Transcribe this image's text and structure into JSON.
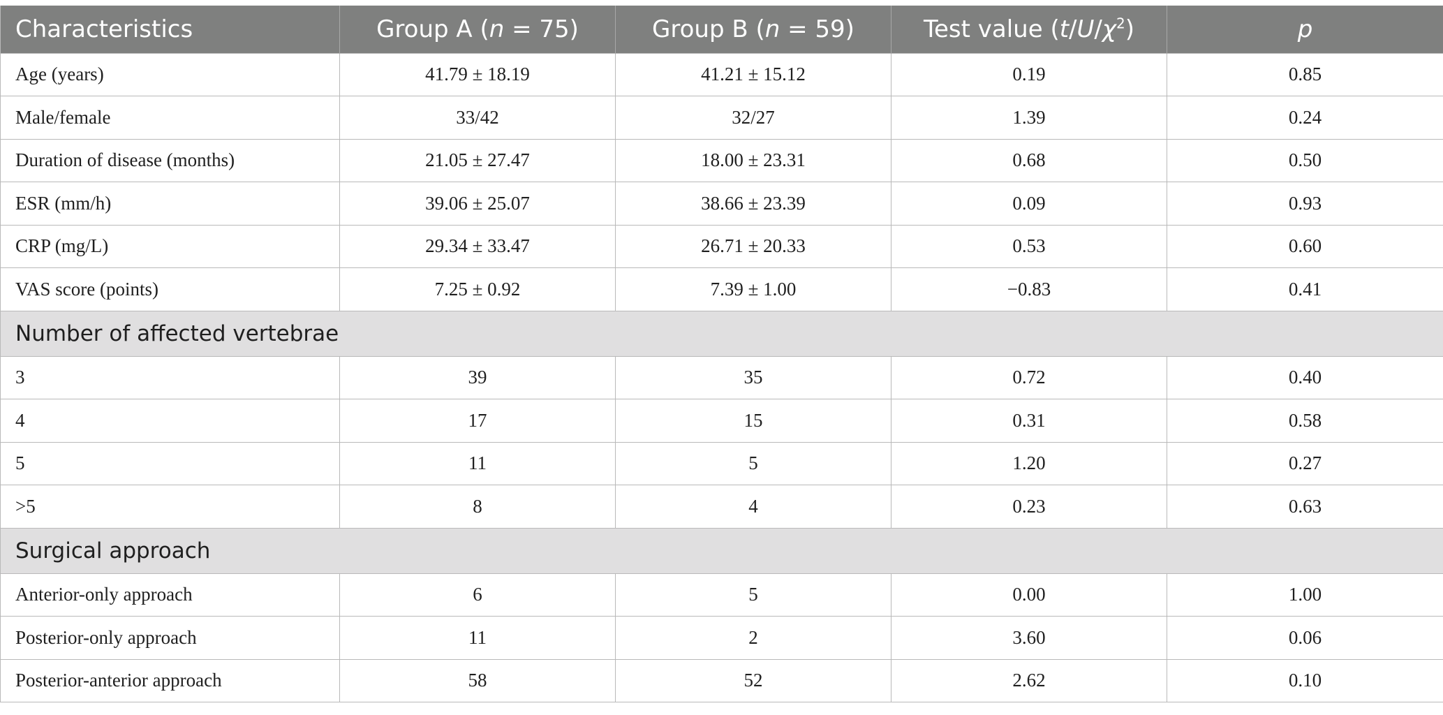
{
  "table": {
    "header": {
      "characteristics": "Characteristics",
      "group_a": {
        "prefix": "Group A (",
        "n": "n",
        "rest": " = 75)"
      },
      "group_b": {
        "prefix": "Group B (",
        "n": "n",
        "rest": " = 59)"
      },
      "test": {
        "prefix": "Test value (",
        "t": "t",
        "slash1": "/",
        "u": "U",
        "slash2": "/",
        "chi": "χ",
        "sup": "2",
        "close": ")"
      },
      "p": "p"
    },
    "rows": [
      {
        "label": "Age (years)",
        "a": "41.79 ± 18.19",
        "b": "41.21 ± 15.12",
        "test": "0.19",
        "p": "0.85"
      },
      {
        "label": "Male/female",
        "a": "33/42",
        "b": "32/27",
        "test": "1.39",
        "p": "0.24"
      },
      {
        "label": "Duration of disease (months)",
        "a": "21.05 ± 27.47",
        "b": "18.00 ± 23.31",
        "test": "0.68",
        "p": "0.50"
      },
      {
        "label": "ESR (mm/h)",
        "a": "39.06 ± 25.07",
        "b": "38.66 ± 23.39",
        "test": "0.09",
        "p": "0.93"
      },
      {
        "label": "CRP (mg/L)",
        "a": "29.34 ± 33.47",
        "b": "26.71 ± 20.33",
        "test": "0.53",
        "p": "0.60"
      },
      {
        "label": "VAS score (points)",
        "a": "7.25 ± 0.92",
        "b": "7.39 ± 1.00",
        "test": "−0.83",
        "p": "0.41"
      }
    ],
    "section_vertebrae": "Number of affected vertebrae",
    "vertebrae_rows": [
      {
        "label": "3",
        "a": "39",
        "b": "35",
        "test": "0.72",
        "p": "0.40"
      },
      {
        "label": "4",
        "a": "17",
        "b": "15",
        "test": "0.31",
        "p": "0.58"
      },
      {
        "label": "5",
        "a": "11",
        "b": "5",
        "test": "1.20",
        "p": "0.27"
      },
      {
        "label": ">5",
        "a": "8",
        "b": "4",
        "test": "0.23",
        "p": "0.63"
      }
    ],
    "section_surgical": "Surgical approach",
    "surgical_rows": [
      {
        "label": "Anterior-only approach",
        "a": "6",
        "b": "5",
        "test": "0.00",
        "p": "1.00"
      },
      {
        "label": "Posterior-only approach",
        "a": "11",
        "b": "2",
        "test": "3.60",
        "p": "0.06"
      },
      {
        "label": "Posterior-anterior approach",
        "a": "58",
        "b": "52",
        "test": "2.62",
        "p": "0.10"
      }
    ]
  }
}
